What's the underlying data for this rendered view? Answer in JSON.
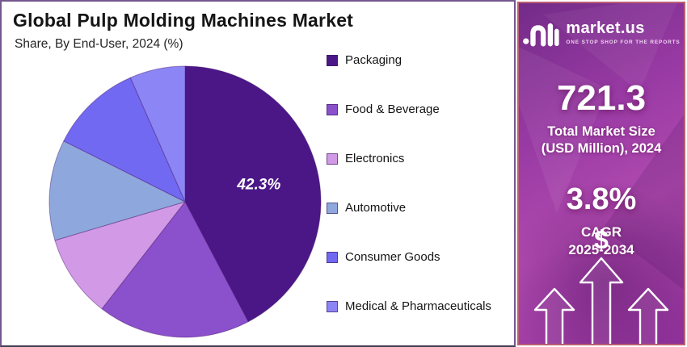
{
  "header": {
    "title": "Global Pulp Molding Machines Market",
    "subtitle": "Share, By End-User, 2024 (%)"
  },
  "chart_data": {
    "type": "pie",
    "title": "Global Pulp Molding Machines Market",
    "subtitle": "Share, By End-User, 2024 (%)",
    "unit": "percent",
    "start_angle_deg": 0,
    "direction": "clockwise",
    "legend_position": "right",
    "categories": [
      "Packaging",
      "Food & Beverage",
      "Electronics",
      "Automotive",
      "Consumer Goods",
      "Medical & Pharmaceuticals"
    ],
    "values": [
      42.3,
      18.2,
      9.9,
      12.0,
      11.0,
      6.6
    ],
    "colors": [
      "#4b1787",
      "#8b50cc",
      "#d29ae6",
      "#8ea8dd",
      "#7169f2",
      "#8c85f5"
    ],
    "labels": [
      {
        "slice": 0,
        "text": "42.3%",
        "radius_frac": 0.56
      }
    ],
    "label_color": "#ffffff",
    "slice_stroke": "rgba(74,26,110,0.45)"
  },
  "sidebar": {
    "logo": {
      "brand": "market.us",
      "tagline": "ONE STOP SHOP FOR THE REPORTS"
    },
    "market_size": {
      "value": "721.3",
      "caption_line1": "Total Market Size",
      "caption_line2": "(USD Million), 2024"
    },
    "cagr": {
      "value": "3.8%",
      "caption_line1": "CAGR",
      "caption_line2": "2025-2034"
    },
    "dollar_symbol": "$"
  },
  "colors": {
    "panel_purple": "#9a3aa6",
    "panel_border": "#bb5f72",
    "chart_border": "#75578f",
    "title_text": "#151515"
  }
}
